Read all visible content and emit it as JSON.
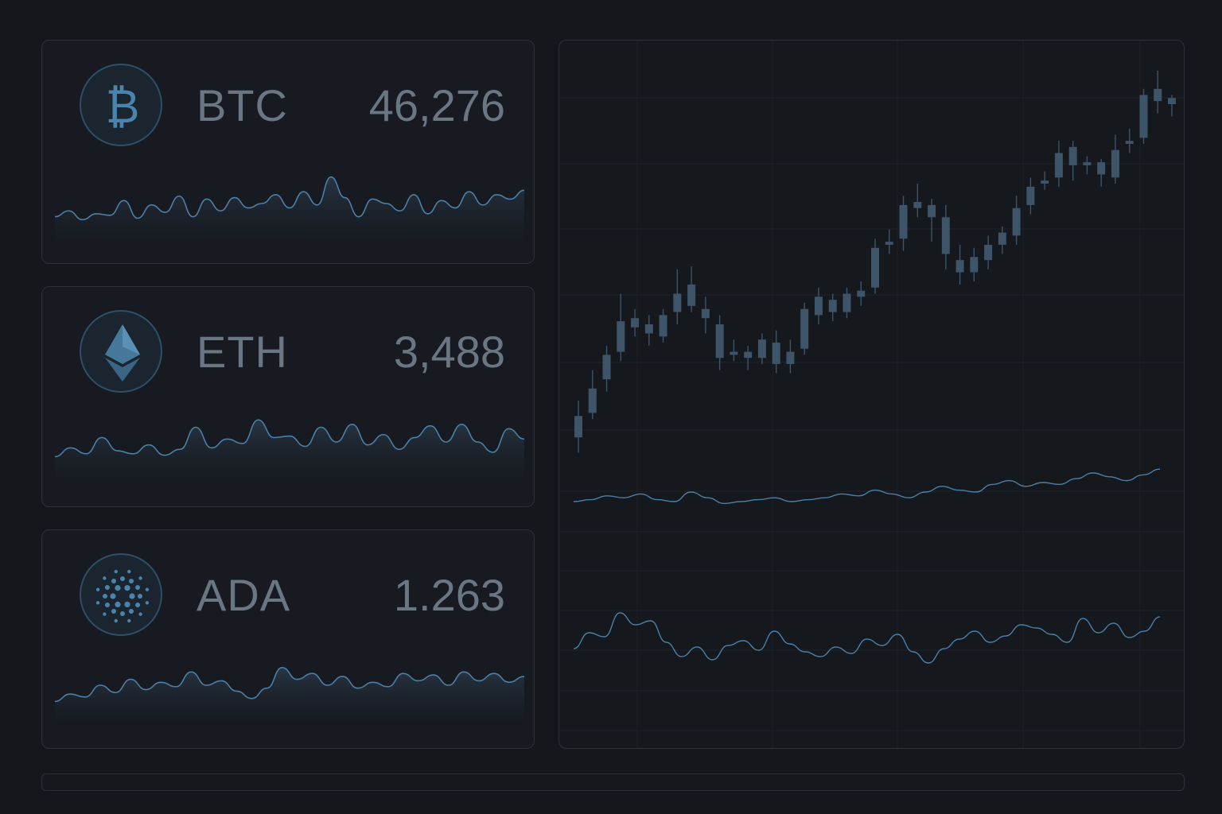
{
  "theme": {
    "accent": "#4a84ad",
    "line": "#4c7fa6",
    "candle": "#3e5468",
    "text": "#6b7683",
    "border": "#2c3139"
  },
  "tickers": [
    {
      "symbol": "BTC",
      "price": "46,276",
      "icon": "bitcoin-icon",
      "sparkline": [
        22,
        30,
        18,
        26,
        24,
        44,
        20,
        38,
        28,
        50,
        22,
        46,
        30,
        48,
        34,
        40,
        52,
        34,
        56,
        38,
        76,
        48,
        22,
        46,
        40,
        30,
        52,
        26,
        44,
        34,
        56,
        38,
        52,
        46,
        58
      ]
    },
    {
      "symbol": "ETH",
      "price": "3,488",
      "icon": "ethereum-icon",
      "sparkline": [
        20,
        32,
        24,
        46,
        28,
        24,
        36,
        22,
        30,
        60,
        32,
        44,
        38,
        70,
        46,
        48,
        34,
        60,
        40,
        64,
        36,
        50,
        30,
        46,
        62,
        40,
        64,
        40,
        26,
        58,
        44
      ]
    },
    {
      "symbol": "ADA",
      "price": "1.263",
      "icon": "cardano-icon",
      "sparkline": [
        18,
        28,
        24,
        40,
        30,
        48,
        34,
        44,
        38,
        58,
        40,
        46,
        32,
        22,
        36,
        64,
        48,
        56,
        40,
        52,
        36,
        44,
        38,
        56,
        46,
        54,
        40,
        58,
        46,
        56,
        44,
        52
      ]
    }
  ],
  "chart_data": {
    "type": "candlestick",
    "ohlc": [
      [
        28,
        35,
        23,
        40
      ],
      [
        36,
        44,
        34,
        50
      ],
      [
        47,
        55,
        43,
        58
      ],
      [
        56,
        66,
        53,
        75
      ],
      [
        67,
        64,
        61,
        70
      ],
      [
        65,
        62,
        58,
        68
      ],
      [
        61,
        68,
        59,
        70
      ],
      [
        69,
        75,
        65,
        83
      ],
      [
        78,
        71,
        69,
        84
      ],
      [
        70,
        67,
        62,
        74
      ],
      [
        65,
        54,
        50,
        68
      ],
      [
        55,
        56,
        53,
        60
      ],
      [
        56,
        54,
        50,
        58
      ],
      [
        54,
        60,
        52,
        62
      ],
      [
        59,
        52,
        49,
        63
      ],
      [
        52,
        56,
        49,
        60
      ],
      [
        57,
        70,
        55,
        72
      ],
      [
        68,
        74,
        65,
        77
      ],
      [
        73,
        69,
        66,
        75
      ],
      [
        69,
        75,
        67,
        77
      ],
      [
        74,
        76,
        71,
        79
      ],
      [
        77,
        90,
        75,
        93
      ],
      [
        91,
        92,
        88,
        96
      ],
      [
        93,
        104,
        89,
        107
      ],
      [
        105,
        103,
        100,
        111
      ],
      [
        104,
        100,
        92,
        106
      ],
      [
        100,
        88,
        83,
        104
      ],
      [
        86,
        82,
        78,
        91
      ],
      [
        82,
        87,
        79,
        90
      ],
      [
        86,
        91,
        83,
        94
      ],
      [
        91,
        95,
        88,
        97
      ],
      [
        94,
        103,
        91,
        107
      ],
      [
        104,
        110,
        101,
        113
      ],
      [
        111,
        112,
        109,
        115
      ],
      [
        113,
        121,
        110,
        125
      ],
      [
        123,
        117,
        112,
        125
      ],
      [
        117,
        118,
        114,
        120
      ],
      [
        118,
        114,
        110,
        119
      ],
      [
        113,
        122,
        111,
        127
      ],
      [
        124,
        125,
        121,
        129
      ],
      [
        126,
        140,
        124,
        142
      ],
      [
        142,
        138,
        134,
        148
      ],
      [
        139,
        137,
        133,
        140
      ]
    ],
    "indicator_1": [
      10,
      12,
      16,
      14,
      18,
      12,
      10,
      20,
      14,
      8,
      10,
      12,
      14,
      10,
      12,
      14,
      18,
      16,
      22,
      18,
      14,
      20,
      26,
      22,
      20,
      28,
      32,
      26,
      30,
      28,
      34,
      40,
      36,
      32,
      38,
      44
    ],
    "indicator_2": [
      40,
      60,
      55,
      85,
      70,
      75,
      48,
      30,
      42,
      26,
      44,
      50,
      38,
      62,
      46,
      36,
      30,
      42,
      34,
      52,
      44,
      58,
      36,
      22,
      40,
      52,
      62,
      48,
      56,
      70,
      66,
      58,
      48,
      78,
      60,
      72,
      54,
      62,
      80
    ],
    "ylim": [
      20,
      150
    ],
    "grid": true
  }
}
